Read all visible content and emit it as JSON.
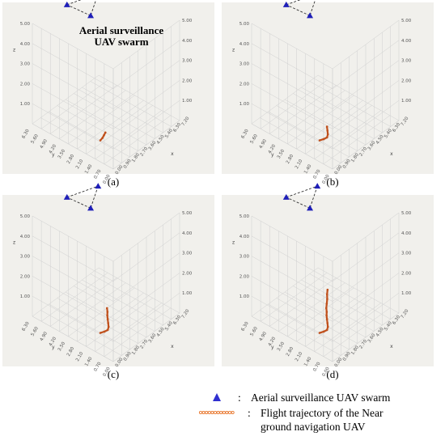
{
  "annotation": [
    "Aerial surveillance",
    "UAV swarm"
  ],
  "legend": {
    "swarm_text": "Aerial surveillance UAV swarm",
    "trajectory_text_1": "Flight trajectory of the Near",
    "trajectory_text_2": "ground navigation UAV",
    "swarm_color": "#2f2fd0",
    "trajectory_color": "#e8762c"
  },
  "colors": {
    "panel_bg": "#f1f0ec",
    "grid": "#cfcfcf",
    "swarm": "#1f1fb8",
    "trajectory": "#c0501c",
    "dashed": "#333333"
  },
  "chart_data": [
    {
      "type": "scatter",
      "panel_label": "(a)",
      "axes": {
        "x_ticks": [
          "0.00",
          "0.90",
          "1.80",
          "2.70",
          "3.60",
          "4.50",
          "5.40",
          "6.30",
          "7.20"
        ],
        "y_ticks": [
          "0.00",
          "0.70",
          "1.40",
          "2.10",
          "2.80",
          "3.50",
          "4.20",
          "4.90",
          "5.60",
          "6.30"
        ],
        "z_ticks": [
          "1.00",
          "2.00",
          "3.00",
          "4.00",
          "5.00"
        ],
        "x_label": "x",
        "y_label": "y",
        "z_label": "z"
      },
      "series": [
        {
          "name": "Aerial surveillance UAV swarm",
          "kind": "triangle",
          "points": [
            [
              3.2,
              5.9,
              5.0
            ],
            [
              5.6,
              5.2,
              5.0
            ],
            [
              3.4,
              4.2,
              5.0
            ]
          ]
        },
        {
          "name": "Flight trajectory of the Near ground navigation UAV",
          "kind": "trajectory",
          "points": [
            [
              1.8,
              2.3,
              0
            ],
            [
              2.1,
              2.35,
              0
            ],
            [
              2.4,
              2.45,
              0
            ],
            [
              2.7,
              2.55,
              0
            ]
          ]
        }
      ]
    },
    {
      "type": "scatter",
      "panel_label": "(b)",
      "axes": {
        "x_ticks": [
          "0.00",
          "0.90",
          "1.80",
          "2.70",
          "3.60",
          "4.50",
          "5.40",
          "6.30",
          "7.20"
        ],
        "y_ticks": [
          "0.00",
          "0.70",
          "1.40",
          "2.10",
          "2.80",
          "3.50",
          "4.20",
          "4.90",
          "5.60",
          "6.30"
        ],
        "z_ticks": [
          "1.00",
          "2.00",
          "3.00",
          "4.00",
          "5.00"
        ],
        "x_label": "x",
        "y_label": "y",
        "z_label": "z"
      },
      "series": [
        {
          "name": "Aerial surveillance UAV swarm",
          "kind": "triangle",
          "points": [
            [
              3.2,
              5.9,
              5.0
            ],
            [
              5.6,
              5.2,
              5.0
            ],
            [
              3.4,
              4.2,
              5.0
            ]
          ]
        },
        {
          "name": "Flight trajectory of the Near ground navigation UAV",
          "kind": "trajectory",
          "points": [
            [
              1.8,
              2.3,
              0
            ],
            [
              2.1,
              2.2,
              0
            ],
            [
              2.4,
              2.15,
              0
            ],
            [
              2.7,
              2.3,
              0
            ],
            [
              3.0,
              2.55,
              0
            ],
            [
              3.3,
              2.8,
              0
            ]
          ]
        }
      ]
    },
    {
      "type": "scatter",
      "panel_label": "(c)",
      "axes": {
        "x_ticks": [
          "0.00",
          "0.90",
          "1.80",
          "2.70",
          "3.60",
          "4.50",
          "5.40",
          "6.30",
          "7.20"
        ],
        "y_ticks": [
          "0.00",
          "0.70",
          "1.40",
          "2.10",
          "2.80",
          "3.50",
          "4.20",
          "4.90",
          "5.60",
          "6.30"
        ],
        "z_ticks": [
          "1.00",
          "2.00",
          "3.00",
          "4.00",
          "5.00"
        ],
        "x_label": "x",
        "y_label": "y",
        "z_label": "z"
      },
      "series": [
        {
          "name": "Aerial surveillance UAV swarm",
          "kind": "triangle",
          "points": [
            [
              3.2,
              5.9,
              5.0
            ],
            [
              5.6,
              5.2,
              5.0
            ],
            [
              3.4,
              4.2,
              5.0
            ]
          ]
        },
        {
          "name": "Flight trajectory of the Near ground navigation UAV",
          "kind": "trajectory",
          "points": [
            [
              1.8,
              2.3,
              0
            ],
            [
              2.1,
              2.2,
              0
            ],
            [
              2.4,
              2.15,
              0
            ],
            [
              2.7,
              2.3,
              0
            ],
            [
              3.0,
              2.55,
              0
            ],
            [
              3.3,
              2.8,
              0
            ],
            [
              3.6,
              3.05,
              0
            ],
            [
              3.9,
              3.25,
              0
            ],
            [
              4.2,
              3.5,
              0
            ]
          ]
        }
      ]
    },
    {
      "type": "scatter",
      "panel_label": "(d)",
      "axes": {
        "x_ticks": [
          "0.00",
          "0.90",
          "1.80",
          "2.70",
          "3.60",
          "4.50",
          "5.40",
          "6.30",
          "7.20"
        ],
        "y_ticks": [
          "0.00",
          "0.70",
          "1.40",
          "2.10",
          "2.80",
          "3.50",
          "4.20",
          "4.90",
          "5.60",
          "6.30"
        ],
        "z_ticks": [
          "1.00",
          "2.00",
          "3.00",
          "4.00",
          "5.00"
        ],
        "x_label": "x",
        "y_label": "y",
        "z_label": "z"
      },
      "series": [
        {
          "name": "Aerial surveillance UAV swarm",
          "kind": "triangle",
          "points": [
            [
              3.2,
              5.9,
              5.0
            ],
            [
              5.6,
              5.2,
              5.0
            ],
            [
              3.4,
              4.2,
              5.0
            ]
          ]
        },
        {
          "name": "Flight trajectory of the Near ground navigation UAV",
          "kind": "trajectory",
          "points": [
            [
              1.8,
              2.3,
              0
            ],
            [
              2.1,
              2.2,
              0
            ],
            [
              2.4,
              2.15,
              0
            ],
            [
              2.7,
              2.3,
              0
            ],
            [
              3.0,
              2.55,
              0
            ],
            [
              3.3,
              2.8,
              0
            ],
            [
              3.6,
              3.05,
              0
            ],
            [
              3.9,
              3.25,
              0
            ],
            [
              4.2,
              3.5,
              0
            ],
            [
              4.6,
              3.75,
              0
            ],
            [
              5.0,
              4.0,
              0
            ],
            [
              5.4,
              4.3,
              0
            ],
            [
              5.8,
              4.55,
              0
            ]
          ]
        }
      ]
    }
  ]
}
